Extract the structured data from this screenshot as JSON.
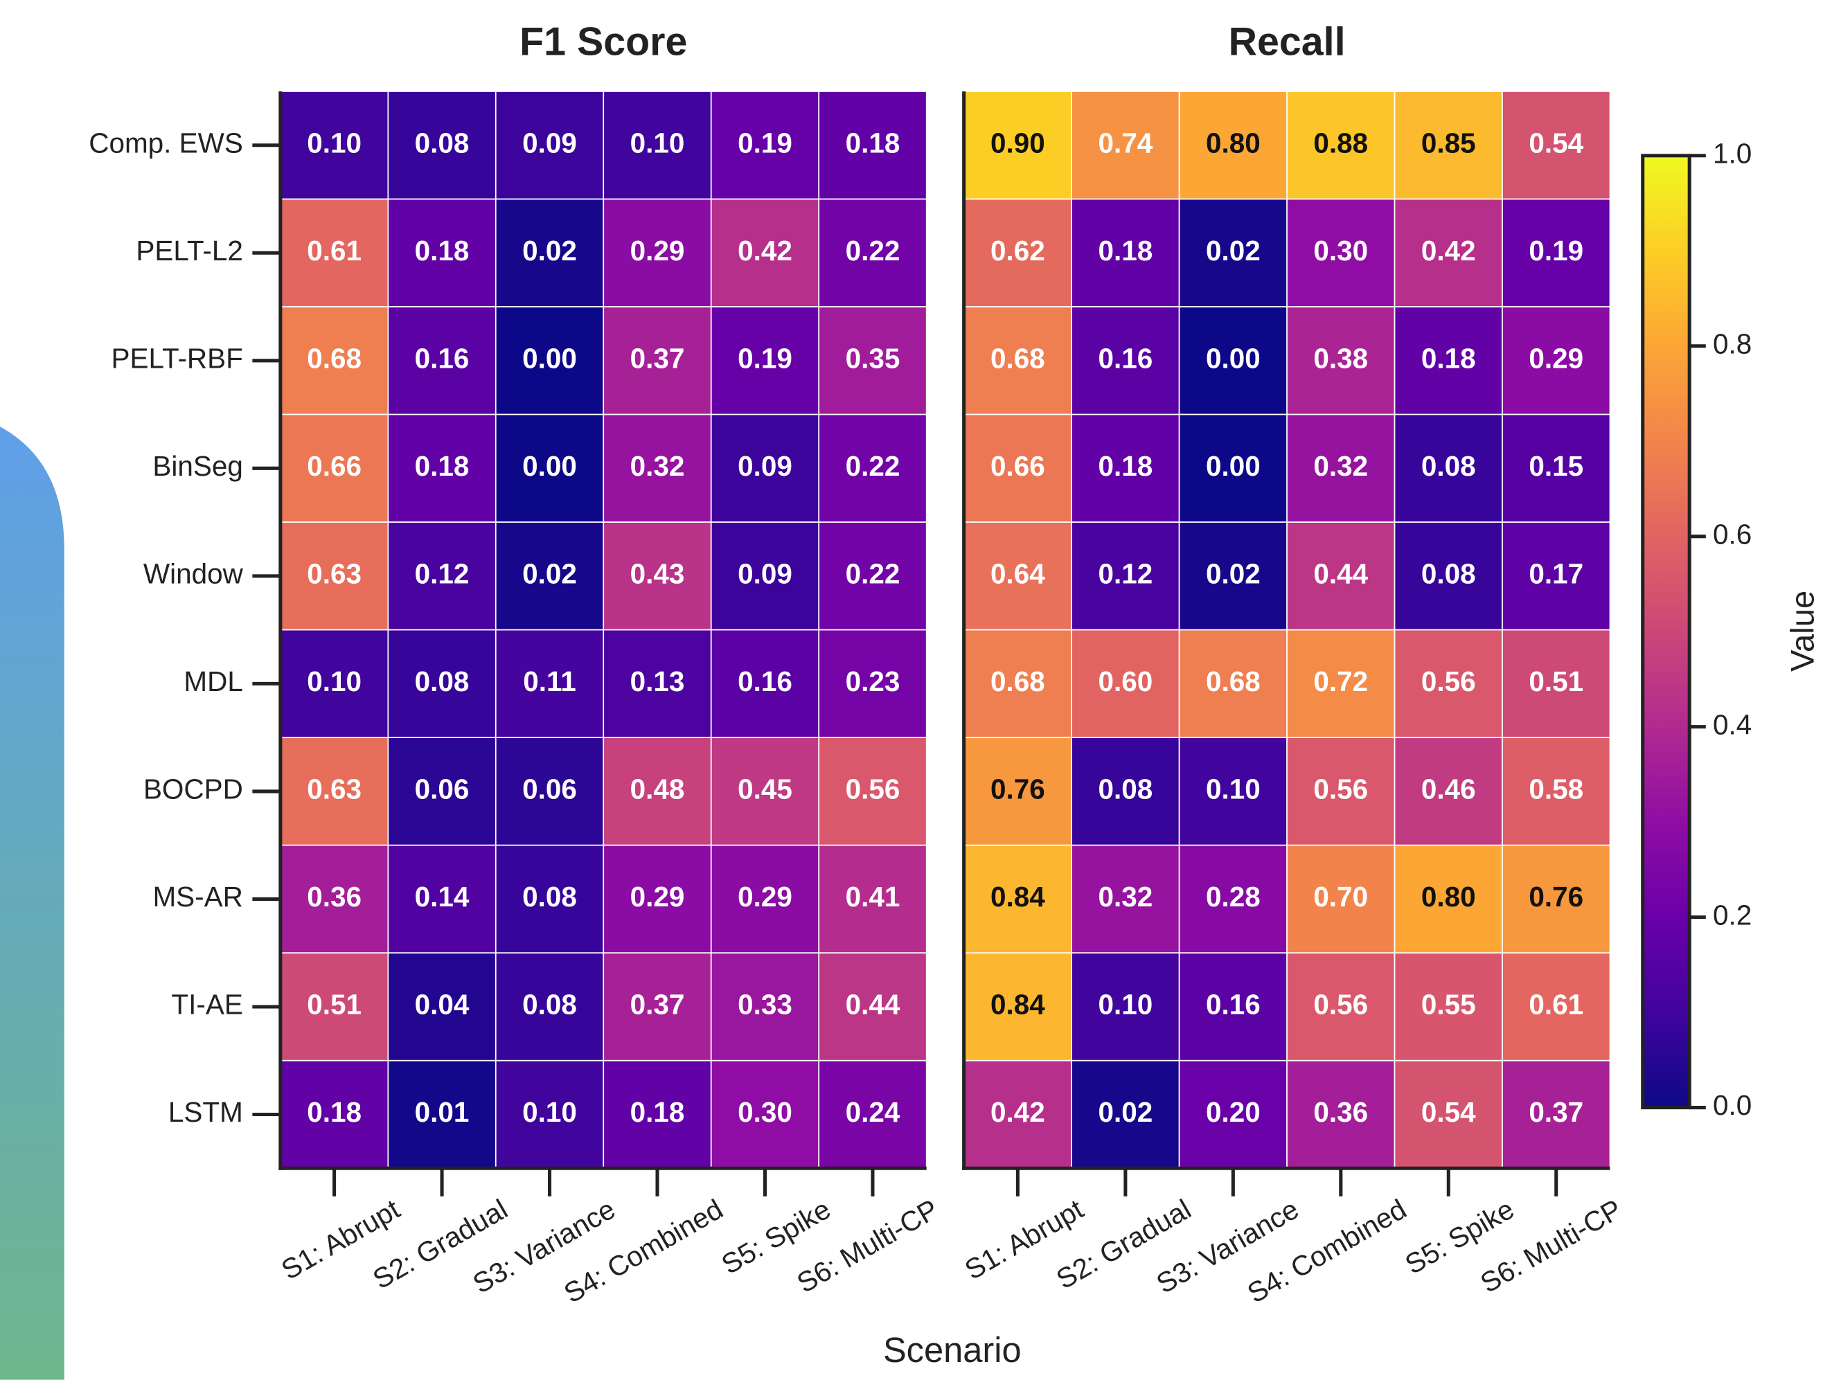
{
  "chart_data": [
    {
      "type": "heatmap",
      "title": "F1 Score",
      "xlabel": "Scenario",
      "rows": [
        "Comp. EWS",
        "PELT-L2",
        "PELT-RBF",
        "BinSeg",
        "Window",
        "MDL",
        "BOCPD",
        "MS-AR",
        "TI-AE",
        "LSTM"
      ],
      "categories": [
        "S1: Abrupt",
        "S2: Gradual",
        "S3: Variance",
        "S4: Combined",
        "S5: Spike",
        "S6: Multi-CP"
      ],
      "values": [
        [
          0.1,
          0.08,
          0.09,
          0.1,
          0.19,
          0.18
        ],
        [
          0.61,
          0.18,
          0.02,
          0.29,
          0.42,
          0.22
        ],
        [
          0.68,
          0.16,
          0.0,
          0.37,
          0.19,
          0.35
        ],
        [
          0.66,
          0.18,
          0.0,
          0.32,
          0.09,
          0.22
        ],
        [
          0.63,
          0.12,
          0.02,
          0.43,
          0.09,
          0.22
        ],
        [
          0.1,
          0.08,
          0.11,
          0.13,
          0.16,
          0.23
        ],
        [
          0.63,
          0.06,
          0.06,
          0.48,
          0.45,
          0.56
        ],
        [
          0.36,
          0.14,
          0.08,
          0.29,
          0.29,
          0.41
        ],
        [
          0.51,
          0.04,
          0.08,
          0.37,
          0.33,
          0.44
        ],
        [
          0.18,
          0.01,
          0.1,
          0.18,
          0.3,
          0.24
        ]
      ],
      "value_labels": [
        [
          "0.10",
          "0.08",
          "0.09",
          "0.10",
          "0.19",
          "0.18"
        ],
        [
          "0.61",
          "0.18",
          "0.02",
          "0.29",
          "0.42",
          "0.22"
        ],
        [
          "0.68",
          "0.16",
          "0.00",
          "0.37",
          "0.19",
          "0.35"
        ],
        [
          "0.66",
          "0.18",
          "0.00",
          "0.32",
          "0.09",
          "0.22"
        ],
        [
          "0.63",
          "0.12",
          "0.02",
          "0.43",
          "0.09",
          "0.22"
        ],
        [
          "0.10",
          "0.08",
          "0.11",
          "0.13",
          "0.16",
          "0.23"
        ],
        [
          "0.63",
          "0.06",
          "0.06",
          "0.48",
          "0.45",
          "0.56"
        ],
        [
          "0.36",
          "0.14",
          "0.08",
          "0.29",
          "0.29",
          "0.41"
        ],
        [
          "0.51",
          "0.04",
          "0.08",
          "0.37",
          "0.33",
          "0.44"
        ],
        [
          "0.18",
          "0.01",
          "0.10",
          "0.18",
          "0.30",
          "0.24"
        ]
      ],
      "colormap": "plasma"
    },
    {
      "type": "heatmap",
      "title": "Recall",
      "categories": [
        "S1: Abrupt",
        "S2: Gradual",
        "S3: Variance",
        "S4: Combined",
        "S5: Spike",
        "S6: Multi-CP"
      ],
      "values": [
        [
          0.9,
          0.74,
          0.8,
          0.88,
          0.85,
          0.54
        ],
        [
          0.62,
          0.18,
          0.02,
          0.3,
          0.42,
          0.19
        ],
        [
          0.68,
          0.16,
          0.0,
          0.38,
          0.18,
          0.29
        ],
        [
          0.66,
          0.18,
          0.0,
          0.32,
          0.08,
          0.15
        ],
        [
          0.64,
          0.12,
          0.02,
          0.44,
          0.08,
          0.17
        ],
        [
          0.68,
          0.6,
          0.68,
          0.72,
          0.56,
          0.51
        ],
        [
          0.76,
          0.08,
          0.1,
          0.56,
          0.46,
          0.58
        ],
        [
          0.84,
          0.32,
          0.28,
          0.7,
          0.8,
          0.76
        ],
        [
          0.84,
          0.1,
          0.16,
          0.56,
          0.55,
          0.61
        ],
        [
          0.42,
          0.02,
          0.2,
          0.36,
          0.54,
          0.37
        ]
      ],
      "value_labels": [
        [
          "0.90",
          "0.74",
          "0.80",
          "0.88",
          "0.85",
          "0.54"
        ],
        [
          "0.62",
          "0.18",
          "0.02",
          "0.30",
          "0.42",
          "0.19"
        ],
        [
          "0.68",
          "0.16",
          "0.00",
          "0.38",
          "0.18",
          "0.29"
        ],
        [
          "0.66",
          "0.18",
          "0.00",
          "0.32",
          "0.08",
          "0.15"
        ],
        [
          "0.64",
          "0.12",
          "0.02",
          "0.44",
          "0.08",
          "0.17"
        ],
        [
          "0.68",
          "0.60",
          "0.68",
          "0.72",
          "0.56",
          "0.51"
        ],
        [
          "0.76",
          "0.08",
          "0.10",
          "0.56",
          "0.46",
          "0.58"
        ],
        [
          "0.84",
          "0.32",
          "0.28",
          "0.70",
          "0.80",
          "0.76"
        ],
        [
          "0.84",
          "0.10",
          "0.16",
          "0.56",
          "0.55",
          "0.61"
        ],
        [
          "0.42",
          "0.02",
          "0.20",
          "0.36",
          "0.54",
          "0.37"
        ]
      ],
      "colormap": "plasma",
      "colorbar": {
        "label": "Value",
        "lim": [
          0,
          1
        ],
        "ticks": [
          {
            "value": 0,
            "label": "0.0"
          },
          {
            "value": 0.2,
            "label": "0.2"
          },
          {
            "value": 0.4,
            "label": "0.4"
          },
          {
            "value": 0.6,
            "label": "0.6"
          },
          {
            "value": 0.8,
            "label": "0.8"
          },
          {
            "value": 1,
            "label": "1.0"
          }
        ]
      }
    }
  ]
}
